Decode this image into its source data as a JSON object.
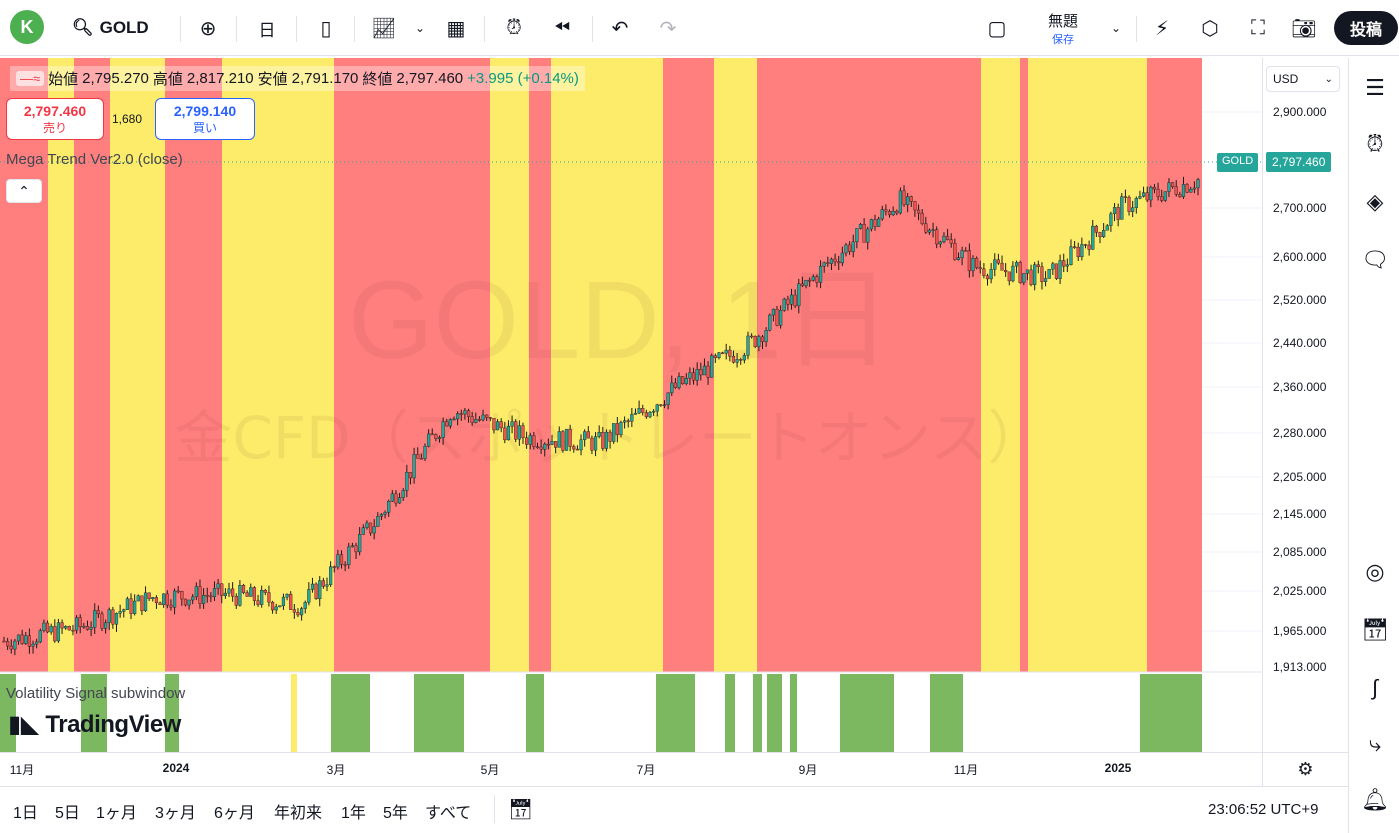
{
  "topbar": {
    "avatar": "K",
    "symbol": "GOLD",
    "interval": "日",
    "layout_title": "無題",
    "save_label": "保存",
    "post_label": "投稿"
  },
  "legend": {
    "open_label": "始値",
    "open": "2,795.270",
    "high_label": "高値",
    "high": "2,817.210",
    "low_label": "安値",
    "low": "2,791.170",
    "close_label": "終値",
    "close": "2,797.460",
    "change": "+3.995 (+0.14%)"
  },
  "trade": {
    "sell_price": "2,797.460",
    "sell_label": "売り",
    "spread": "1,680",
    "buy_price": "2,799.140",
    "buy_label": "買い"
  },
  "indicator_name": "Mega Trend Ver2.0 (close)",
  "subwindow_name": "Volatility Signal subwindow",
  "watermark": {
    "symbol_line": "GOLD, 1日",
    "desc_line": "金CFD（スポットレートオンス）"
  },
  "tv_logo": "TradingView",
  "price_axis": {
    "currency": "USD",
    "ticks": [
      "2,900.000",
      "2,700.000",
      "2,600.000",
      "2,520.000",
      "2,440.000",
      "2,360.000",
      "2,280.000",
      "2,205.000",
      "2,145.000",
      "2,085.000",
      "2,025.000",
      "1,965.000",
      "1,913.000"
    ],
    "last_price": "2,797.460",
    "last_price_symbol": "GOLD"
  },
  "time_axis": {
    "labels": [
      "11月",
      "2024",
      "3月",
      "5月",
      "7月",
      "9月",
      "11月",
      "2025"
    ],
    "bold": [
      false,
      true,
      false,
      false,
      false,
      false,
      false,
      true
    ]
  },
  "bottombar": {
    "ranges": [
      "1日",
      "5日",
      "1ヶ月",
      "3ヶ月",
      "6ヶ月",
      "年初来",
      "1年",
      "5年",
      "すべて"
    ],
    "clock": "23:06:52 UTC+9"
  },
  "colors": {
    "trend_red": "#ff7f7f",
    "trend_yellow": "#fcec6a",
    "signal_green": "#7cb860",
    "candle_up": "#26a69a",
    "candle_down": "#ef5350",
    "last_price_tag": "#26a69a"
  },
  "chart_data": {
    "type": "candlestick",
    "approx_close_path": [
      {
        "x": "2023-10",
        "y": 1960
      },
      {
        "x": "2023-11",
        "y": 1985
      },
      {
        "x": "2023-12",
        "y": 2040
      },
      {
        "x": "2024-01",
        "y": 2045
      },
      {
        "x": "2024-02",
        "y": 2025
      },
      {
        "x": "2024-03",
        "y": 2180
      },
      {
        "x": "2024-04",
        "y": 2380
      },
      {
        "x": "2024-05",
        "y": 2330
      },
      {
        "x": "2024-06",
        "y": 2320
      },
      {
        "x": "2024-07",
        "y": 2420
      },
      {
        "x": "2024-08",
        "y": 2500
      },
      {
        "x": "2024-09",
        "y": 2640
      },
      {
        "x": "2024-10",
        "y": 2760
      },
      {
        "x": "2024-11",
        "y": 2640
      },
      {
        "x": "2024-12",
        "y": 2620
      },
      {
        "x": "2025-01",
        "y": 2750
      },
      {
        "x": "2025-02",
        "y": 2797
      }
    ],
    "trend_bands": [
      "red",
      "yellow",
      "red",
      "yellow",
      "red",
      "yellow",
      "red",
      "yellow",
      "red",
      "yellow",
      "red",
      "yellow",
      "red",
      "yellow",
      "red",
      "yellow",
      "red"
    ],
    "ylim": [
      1913,
      2920
    ]
  }
}
